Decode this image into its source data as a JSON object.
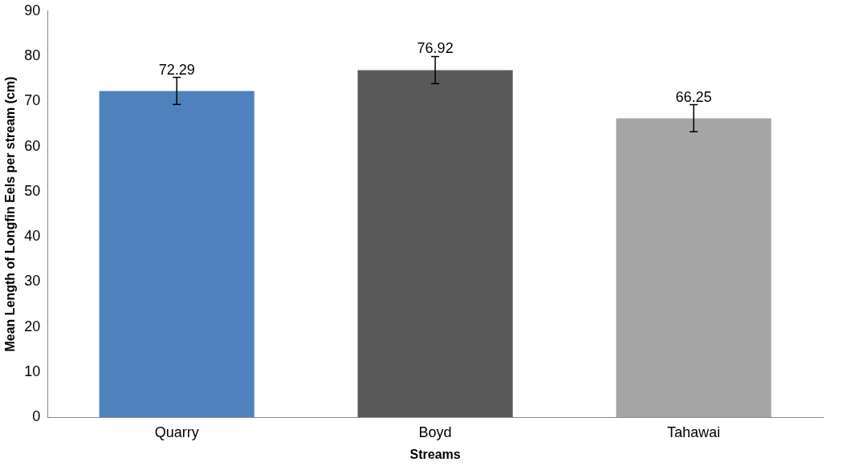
{
  "chart_data": {
    "type": "bar",
    "xlabel": "Streams",
    "ylabel": "Mean Length of Longfin Eels per stream (cm)",
    "categories": [
      "Quarry",
      "Boyd",
      "Tahawai"
    ],
    "values": [
      72.29,
      76.92,
      66.25
    ],
    "colors": [
      "#4f81bd",
      "#595959",
      "#a5a5a5"
    ],
    "errors": [
      3,
      3,
      3
    ],
    "data_labels": true,
    "ylim": [
      0,
      90
    ],
    "yticks": [
      0,
      10,
      20,
      30,
      40,
      50,
      60,
      70,
      80,
      90
    ],
    "grid": false,
    "legend": false
  }
}
